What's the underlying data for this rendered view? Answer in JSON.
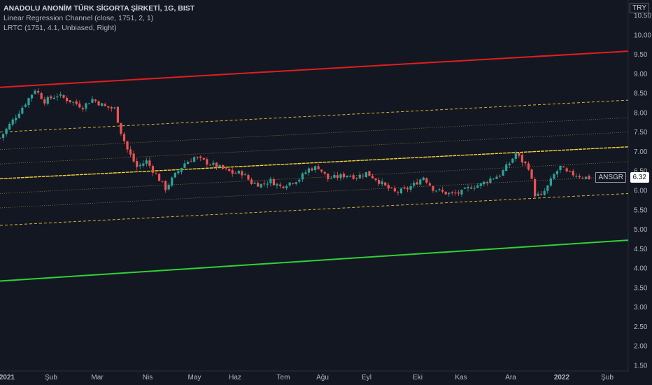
{
  "header": {
    "title": "ANADOLU ANONİM TÜRK SİGORTA ŞİRKETİ, 1G, BIST",
    "indicator_1": "Linear Regression Channel (close, 1751, 2, 1)",
    "indicator_2": "LRTC (1751, 4.1, Unbiased, Right)"
  },
  "currency_label": "TRY",
  "last_price": {
    "symbol": "ANSGR",
    "value": "6.32"
  },
  "colors": {
    "background": "#131722",
    "up_candle": "#26a69a",
    "down_candle": "#ef5350",
    "outer_upper": "#e01e1e",
    "outer_lower": "#2ed334",
    "midline": "#f0d332",
    "dashed": "#d4b438",
    "dotted": "#8a7a3a"
  },
  "chart_data": {
    "type": "candlestick",
    "x_ticks": [
      "2021",
      "Şub",
      "Mar",
      "Nis",
      "May",
      "Haz",
      "Tem",
      "Ağu",
      "Eyl",
      "Eki",
      "Kas",
      "Ara",
      "2022",
      "Şub"
    ],
    "y_ticks": [
      "1.50",
      "2.00",
      "2.50",
      "3.00",
      "3.50",
      "4.00",
      "4.50",
      "5.00",
      "5.50",
      "6.00",
      "6.50",
      "7.00",
      "7.50",
      "8.00",
      "8.50",
      "9.00",
      "9.50",
      "10.00",
      "10.50"
    ],
    "ylim": [
      1.5,
      10.55
    ],
    "close_path": [
      [
        0,
        7.35
      ],
      [
        4,
        7.8
      ],
      [
        8,
        8.25
      ],
      [
        11,
        8.6
      ],
      [
        14,
        8.3
      ],
      [
        18,
        8.45
      ],
      [
        22,
        8.3
      ],
      [
        26,
        8.15
      ],
      [
        29,
        8.35
      ],
      [
        33,
        8.15
      ],
      [
        36,
        8.1
      ],
      [
        38,
        7.5
      ],
      [
        40,
        7.05
      ],
      [
        43,
        6.6
      ],
      [
        46,
        6.75
      ],
      [
        49,
        6.4
      ],
      [
        52,
        6.05
      ],
      [
        55,
        6.4
      ],
      [
        58,
        6.7
      ],
      [
        61,
        6.85
      ],
      [
        64,
        6.75
      ],
      [
        67,
        6.65
      ],
      [
        70,
        6.55
      ],
      [
        73,
        6.45
      ],
      [
        76,
        6.45
      ],
      [
        79,
        6.2
      ],
      [
        82,
        6.15
      ],
      [
        85,
        6.25
      ],
      [
        88,
        6.1
      ],
      [
        91,
        6.2
      ],
      [
        94,
        6.3
      ],
      [
        97,
        6.55
      ],
      [
        100,
        6.6
      ],
      [
        103,
        6.3
      ],
      [
        106,
        6.35
      ],
      [
        109,
        6.4
      ],
      [
        112,
        6.35
      ],
      [
        115,
        6.45
      ],
      [
        118,
        6.3
      ],
      [
        121,
        6.1
      ],
      [
        124,
        5.95
      ],
      [
        127,
        6.0
      ],
      [
        130,
        6.15
      ],
      [
        133,
        6.35
      ],
      [
        136,
        6.05
      ],
      [
        139,
        5.95
      ],
      [
        142,
        5.9
      ],
      [
        145,
        5.95
      ],
      [
        148,
        6.1
      ],
      [
        151,
        6.15
      ],
      [
        154,
        6.3
      ],
      [
        157,
        6.4
      ],
      [
        160,
        6.7
      ],
      [
        162,
        6.95
      ],
      [
        164,
        6.75
      ],
      [
        166,
        6.6
      ],
      [
        168,
        5.9
      ],
      [
        170,
        5.85
      ],
      [
        172,
        6.1
      ],
      [
        174,
        6.4
      ],
      [
        176,
        6.6
      ],
      [
        178,
        6.45
      ],
      [
        181,
        6.4
      ],
      [
        183,
        6.35
      ],
      [
        185,
        6.32
      ]
    ],
    "regression_channel": {
      "start_value": 6.3,
      "end_value": 7.12,
      "upper_outer": [
        8.65,
        9.58
      ],
      "lower_outer": [
        3.67,
        4.72
      ],
      "dashed_offsets": [
        1.2,
        -1.2
      ],
      "dotted_offsets": [
        0.75,
        0.38,
        -0.38,
        -0.75
      ]
    }
  }
}
